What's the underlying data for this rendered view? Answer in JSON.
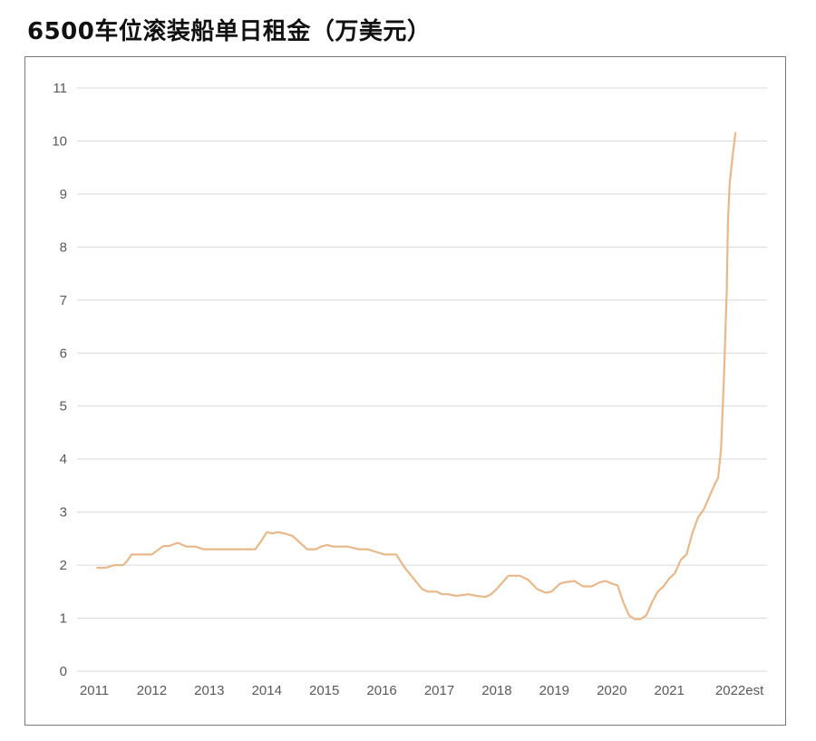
{
  "title": "6500车位滚装船单日租金（万美元）",
  "chart_data": {
    "type": "line",
    "title": "6500车位滚装船单日租金（万美元）",
    "xlabel": "",
    "ylabel": "",
    "ylim": [
      0,
      11
    ],
    "yticks": [
      0,
      1,
      2,
      3,
      4,
      5,
      6,
      7,
      8,
      9,
      10,
      11
    ],
    "xlim": [
      2010.7,
      2022.7
    ],
    "xticks": [
      {
        "value": 2011,
        "label": "2011"
      },
      {
        "value": 2012,
        "label": "2012"
      },
      {
        "value": 2013,
        "label": "2013"
      },
      {
        "value": 2014,
        "label": "2014"
      },
      {
        "value": 2015,
        "label": "2015"
      },
      {
        "value": 2016,
        "label": "2016"
      },
      {
        "value": 2017,
        "label": "2017"
      },
      {
        "value": 2018,
        "label": "2018"
      },
      {
        "value": 2019,
        "label": "2019"
      },
      {
        "value": 2020,
        "label": "2020"
      },
      {
        "value": 2021,
        "label": "2021"
      },
      {
        "value": 2022,
        "label": "2022est"
      }
    ],
    "grid": true,
    "line_color": "#e8b88a",
    "series": [
      {
        "x": [
          2011.05,
          2011.2,
          2011.35,
          2011.5,
          2011.55,
          2011.65,
          2011.95,
          2012.0,
          2012.2,
          2012.3,
          2012.45,
          2012.6,
          2012.75,
          2012.9,
          2013.05,
          2013.3,
          2013.6,
          2013.8,
          2013.9,
          2014.0,
          2014.1,
          2014.2,
          2014.3,
          2014.45,
          2014.55,
          2014.7,
          2014.85,
          2014.95,
          2015.05,
          2015.15,
          2015.25,
          2015.4,
          2015.6,
          2015.75,
          2015.9,
          2016.05,
          2016.25,
          2016.4,
          2016.55,
          2016.7,
          2016.8,
          2016.95,
          2017.05,
          2017.15,
          2017.3,
          2017.5,
          2017.65,
          2017.8,
          2017.9,
          2018.0,
          2018.2,
          2018.4,
          2018.55,
          2018.7,
          2018.85,
          2018.95,
          2019.1,
          2019.2,
          2019.35,
          2019.5,
          2019.65,
          2019.8,
          2019.9,
          2020.0,
          2020.1,
          2020.2,
          2020.3,
          2020.4,
          2020.5,
          2020.6,
          2020.7,
          2020.8,
          2020.9,
          2021.0,
          2021.1,
          2021.2,
          2021.3,
          2021.4,
          2021.5,
          2021.6,
          2021.7,
          2021.78,
          2021.85,
          2021.9,
          2021.95,
          2022.0,
          2022.02,
          2022.05,
          2022.1,
          2022.15
        ],
        "y": [
          1.95,
          1.95,
          2.0,
          2.0,
          2.05,
          2.2,
          2.2,
          2.2,
          2.36,
          2.36,
          2.42,
          2.35,
          2.35,
          2.3,
          2.3,
          2.3,
          2.3,
          2.3,
          2.45,
          2.62,
          2.6,
          2.62,
          2.6,
          2.55,
          2.45,
          2.3,
          2.3,
          2.35,
          2.38,
          2.35,
          2.35,
          2.35,
          2.3,
          2.3,
          2.25,
          2.2,
          2.2,
          1.95,
          1.75,
          1.55,
          1.5,
          1.5,
          1.45,
          1.45,
          1.42,
          1.45,
          1.42,
          1.4,
          1.45,
          1.55,
          1.8,
          1.8,
          1.72,
          1.55,
          1.48,
          1.5,
          1.65,
          1.68,
          1.7,
          1.6,
          1.6,
          1.68,
          1.7,
          1.65,
          1.62,
          1.3,
          1.05,
          0.98,
          0.98,
          1.05,
          1.3,
          1.5,
          1.6,
          1.75,
          1.85,
          2.1,
          2.2,
          2.6,
          2.9,
          3.05,
          3.3,
          3.5,
          3.65,
          4.2,
          5.5,
          7.2,
          8.5,
          9.2,
          9.7,
          10.15
        ]
      }
    ]
  }
}
